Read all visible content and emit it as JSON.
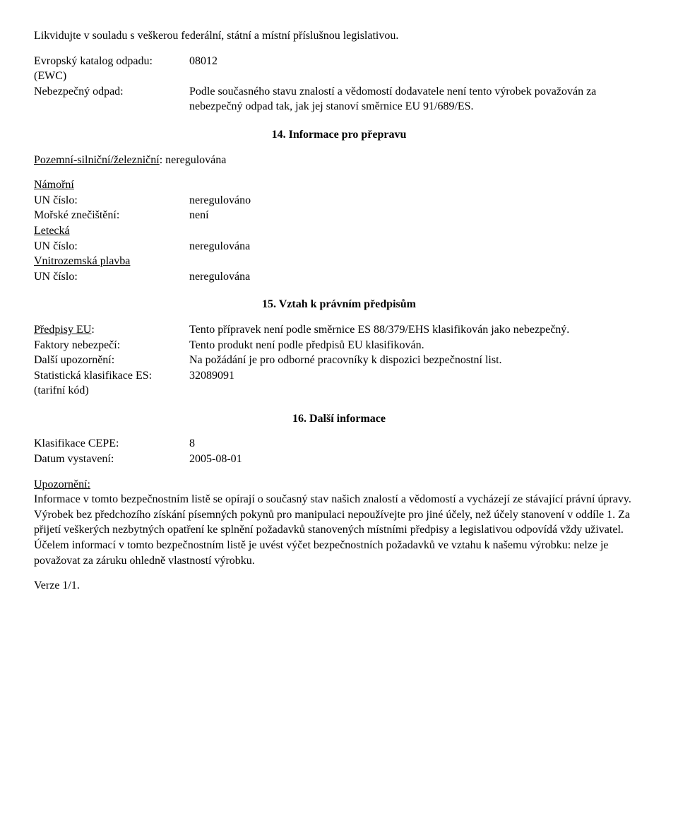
{
  "intro": "Likvidujte v souladu s veškerou federální, státní a místní příslušnou legislativou.",
  "catalog": {
    "label1": "Evropský katalog odpadu:",
    "label1b": "(EWC)",
    "value1": "08012",
    "label2": "Nebezpečný odpad:",
    "value2": "Podle současného stavu znalostí a vědomostí dodavatele není tento výrobek považován za nebezpečný odpad tak, jak jej stanoví směrnice EU 91/689/ES."
  },
  "s14": {
    "heading": "14. Informace pro přepravu",
    "pozemni_label": "Pozemní-silniční/železniční",
    "pozemni_value": ": neregulována",
    "namorni_heading": "Námořní",
    "namorni_un_label": "UN číslo:",
    "namorni_un_value": "neregulováno",
    "namorni_znec_label": "Mořské znečištění:",
    "namorni_znec_value": "není",
    "letecka_heading": "Letecká",
    "letecka_un_label": "UN číslo:",
    "letecka_un_value": "neregulována",
    "vnitro_heading": "Vnitrozemská plavba",
    "vnitro_un_label": "UN číslo:",
    "vnitro_un_value": "neregulována"
  },
  "s15": {
    "heading": "15. Vztah k právním předpisům",
    "predpisy_label": "Předpisy EU",
    "predpisy_value": "Tento přípravek není podle směrnice ES 88/379/EHS klasifikován jako nebezpečný.",
    "faktory_label": "Faktory nebezpečí:",
    "faktory_value": "Tento produkt není podle předpisů EU klasifikován.",
    "dalsi_label": "Další upozornění:",
    "dalsi_value": "Na požádání je pro odborné pracovníky k dispozici  bezpečnostní list.",
    "stat_label1": "Statistická klasifikace ES:",
    "stat_label2": "(tarifní kód)",
    "stat_value": "32089091"
  },
  "s16": {
    "heading": "16. Další informace",
    "cepe_label": "Klasifikace CEPE:",
    "cepe_value": "8",
    "datum_label": "Datum vystavení:",
    "datum_value": "2005-08-01",
    "upozorneni_label": "Upozornění:",
    "upozorneni_body": "Informace v tomto bezpečnostním listě se opírají o současný stav našich znalostí a vědomostí a vycházejí ze stávající právní úpravy. Výrobek bez předchozího získání písemných pokynů pro manipulaci nepoužívejte pro jiné účely, než účely stanovení v oddíle 1. Za přijetí veškerých nezbytných opatření ke splnění požadavků stanovených místními předpisy a legislativou odpovídá vždy uživatel. Účelem informací v tomto bezpečnostním listě je uvést výčet bezpečnostních požadavků ve vztahu k našemu výrobku: nelze je považovat za záruku ohledně vlastností výrobku."
  },
  "footer": "Verze 1/1."
}
